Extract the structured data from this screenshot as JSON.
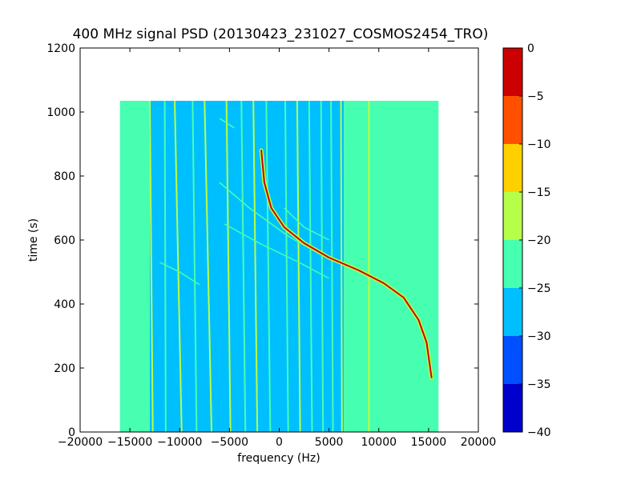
{
  "chart_data": {
    "type": "heatmap",
    "title": "400 MHz signal PSD (20130423_231027_COSMOS2454_TRO)",
    "xlabel": "frequency (Hz)",
    "ylabel": "time (s)",
    "xlim": [
      -20000,
      20000
    ],
    "ylim": [
      0,
      1200
    ],
    "xticks": [
      -20000,
      -15000,
      -10000,
      -5000,
      0,
      5000,
      10000,
      15000,
      20000
    ],
    "yticks": [
      0,
      200,
      400,
      600,
      800,
      1000,
      1200
    ],
    "data_extent": {
      "x": [
        -16000,
        16000
      ],
      "y": [
        0,
        1035
      ]
    },
    "colorbar": {
      "range": [
        -40,
        0
      ],
      "ticks": [
        0,
        -5,
        -10,
        -15,
        -20,
        -25,
        -30,
        -35,
        -40
      ],
      "levels": [
        {
          "from": -40,
          "to": -35,
          "color": "#0000cc"
        },
        {
          "from": -35,
          "to": -30,
          "color": "#0050ff"
        },
        {
          "from": -30,
          "to": -25,
          "color": "#00bfff"
        },
        {
          "from": -25,
          "to": -20,
          "color": "#46ffb0"
        },
        {
          "from": -20,
          "to": -15,
          "color": "#b6ff48"
        },
        {
          "from": -15,
          "to": -10,
          "color": "#ffd000"
        },
        {
          "from": -10,
          "to": -5,
          "color": "#ff5000"
        },
        {
          "from": -5,
          "to": 0,
          "color": "#cc0000"
        }
      ]
    },
    "regions": [
      {
        "x": [
          -16000,
          -13000
        ],
        "level": -22.5
      },
      {
        "x": [
          -13000,
          6500
        ],
        "level": -27.5
      },
      {
        "x": [
          6500,
          16000
        ],
        "level": -22.5
      }
    ],
    "vertical_lines": [
      {
        "x": [
          -14500,
          -14200
        ],
        "t": [
          1035,
          0
        ],
        "level": -22.5
      },
      {
        "x": [
          -13000,
          -12700
        ],
        "t": [
          1035,
          0
        ],
        "level": -17.5
      },
      {
        "x": [
          -11500,
          -11400
        ],
        "t": [
          1035,
          0
        ],
        "level": -22.5
      },
      {
        "x": [
          -10500,
          -9800
        ],
        "t": [
          1035,
          0
        ],
        "level": -17.5
      },
      {
        "x": [
          -8700,
          -8300
        ],
        "t": [
          1035,
          0
        ],
        "level": -22.5
      },
      {
        "x": [
          -7500,
          -6800
        ],
        "t": [
          1035,
          0
        ],
        "level": -17.5
      },
      {
        "x": [
          -5300,
          -4900
        ],
        "t": [
          1035,
          0
        ],
        "level": -17.5
      },
      {
        "x": [
          -3800,
          -3400
        ],
        "t": [
          1035,
          0
        ],
        "level": -22.5
      },
      {
        "x": [
          -2600,
          -2200
        ],
        "t": [
          1035,
          0
        ],
        "level": -17.5
      },
      {
        "x": [
          -1300,
          -900
        ],
        "t": [
          1035,
          0
        ],
        "level": -22.5
      },
      {
        "x": [
          600,
          900
        ],
        "t": [
          1035,
          0
        ],
        "level": -22.5
      },
      {
        "x": [
          1800,
          2100
        ],
        "t": [
          1035,
          0
        ],
        "level": -17.5
      },
      {
        "x": [
          3000,
          3300
        ],
        "t": [
          1035,
          0
        ],
        "level": -22.5
      },
      {
        "x": [
          4200,
          4400
        ],
        "t": [
          1035,
          0
        ],
        "level": -22.5
      },
      {
        "x": [
          5200,
          5400
        ],
        "t": [
          1035,
          0
        ],
        "level": -22.5
      },
      {
        "x": [
          6200,
          6300
        ],
        "t": [
          1035,
          0
        ],
        "level": -17.5
      },
      {
        "x": [
          9000,
          9000
        ],
        "t": [
          1035,
          0
        ],
        "level": -17.5
      }
    ],
    "signal_track": {
      "level": -2.5,
      "points": [
        {
          "x": -1800,
          "t": 880
        },
        {
          "x": -1500,
          "t": 780
        },
        {
          "x": -800,
          "t": 700
        },
        {
          "x": 500,
          "t": 640
        },
        {
          "x": 2500,
          "t": 590
        },
        {
          "x": 5000,
          "t": 545
        },
        {
          "x": 8000,
          "t": 505
        },
        {
          "x": 10500,
          "t": 465
        },
        {
          "x": 12500,
          "t": 420
        },
        {
          "x": 14000,
          "t": 350
        },
        {
          "x": 14800,
          "t": 280
        },
        {
          "x": 15300,
          "t": 170
        }
      ]
    },
    "faint_tracks": [
      {
        "level": -22.5,
        "points": [
          {
            "x": -6000,
            "t": 780
          },
          {
            "x": -3000,
            "t": 700
          },
          {
            "x": 1000,
            "t": 610
          },
          {
            "x": 5000,
            "t": 540
          }
        ]
      },
      {
        "level": -22.5,
        "points": [
          {
            "x": -5500,
            "t": 650
          },
          {
            "x": -2000,
            "t": 590
          },
          {
            "x": 2000,
            "t": 530
          },
          {
            "x": 5000,
            "t": 480
          }
        ]
      },
      {
        "level": -22.5,
        "points": [
          {
            "x": 500,
            "t": 700
          },
          {
            "x": 2500,
            "t": 640
          },
          {
            "x": 5000,
            "t": 600
          }
        ]
      },
      {
        "level": -22.5,
        "points": [
          {
            "x": -12000,
            "t": 530
          },
          {
            "x": -10000,
            "t": 500
          },
          {
            "x": -8000,
            "t": 460
          }
        ]
      },
      {
        "level": -22.5,
        "points": [
          {
            "x": -6000,
            "t": 980
          },
          {
            "x": -4500,
            "t": 950
          }
        ]
      }
    ]
  }
}
